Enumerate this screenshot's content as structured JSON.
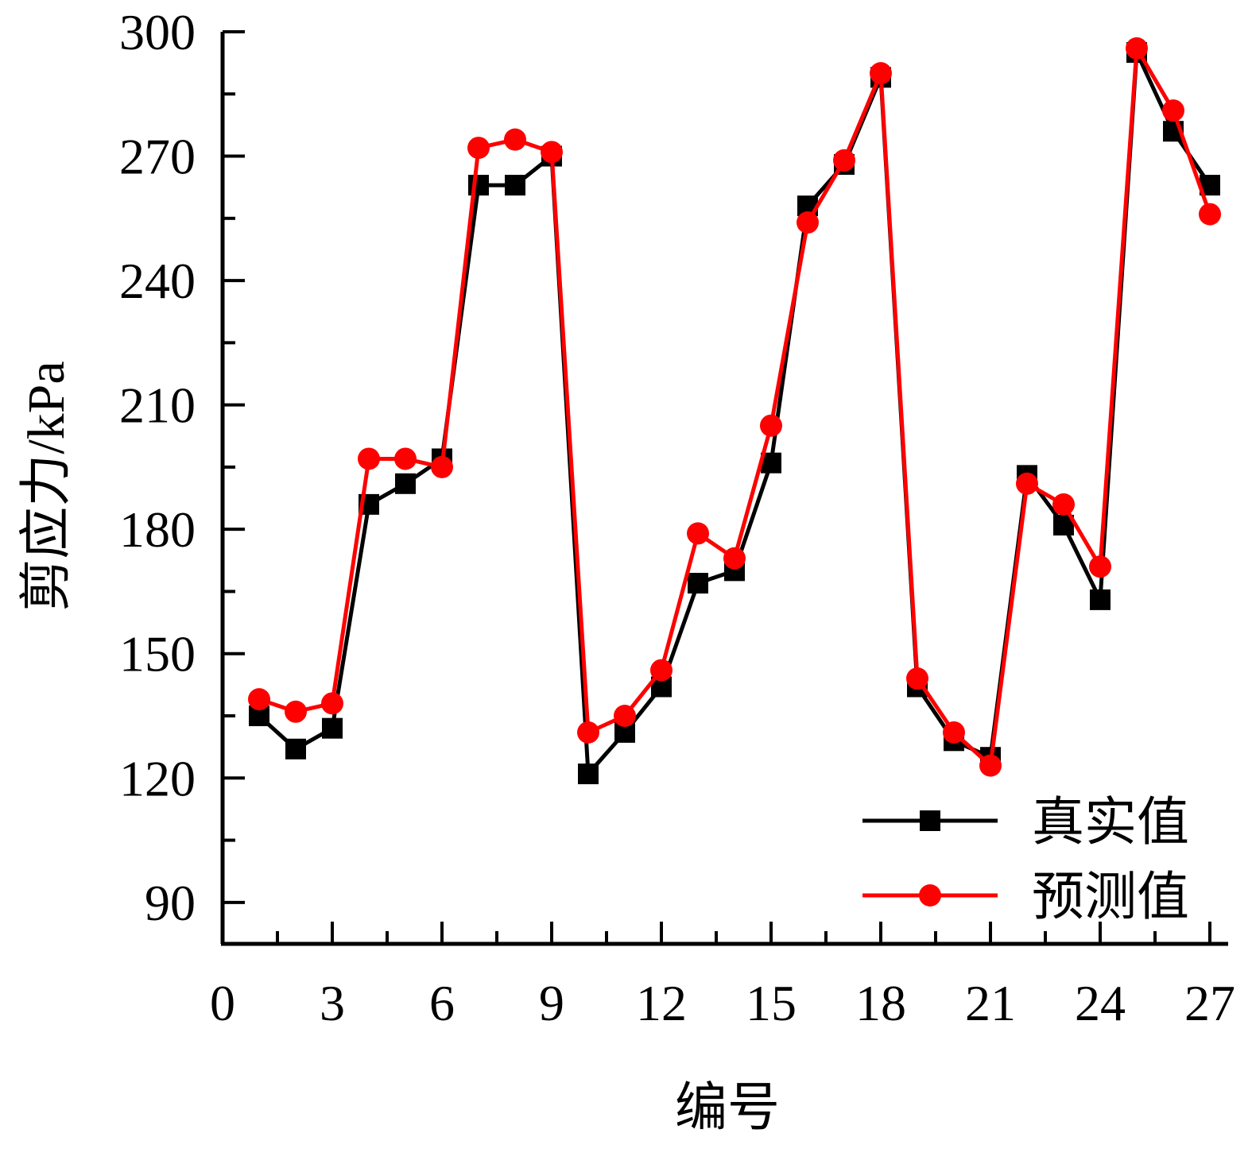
{
  "chart_data": {
    "type": "line",
    "title": "",
    "xlabel": "编号",
    "ylabel": "剪应力/kPa",
    "xlim": [
      0,
      27.5
    ],
    "ylim": [
      80,
      300
    ],
    "xticks": [
      0,
      3,
      6,
      9,
      12,
      15,
      18,
      21,
      24,
      27
    ],
    "yticks": [
      90,
      120,
      150,
      180,
      210,
      240,
      270,
      300
    ],
    "x": [
      1,
      2,
      3,
      4,
      5,
      6,
      7,
      8,
      9,
      10,
      11,
      12,
      13,
      14,
      15,
      16,
      17,
      18,
      19,
      20,
      21,
      22,
      23,
      24,
      25,
      26,
      27
    ],
    "series": [
      {
        "name": "真实值",
        "color": "#000000",
        "marker": "square",
        "values": [
          135,
          127,
          132,
          186,
          191,
          197,
          263,
          263,
          270,
          121,
          131,
          142,
          167,
          170,
          196,
          258,
          268,
          289,
          142,
          129,
          125,
          193,
          181,
          163,
          295,
          276,
          263
        ]
      },
      {
        "name": "预测值",
        "color": "#ff0000",
        "marker": "circle",
        "values": [
          139,
          136,
          138,
          197,
          197,
          195,
          272,
          274,
          271,
          131,
          135,
          146,
          179,
          173,
          205,
          254,
          269,
          290,
          144,
          131,
          123,
          191,
          186,
          171,
          296,
          281,
          256
        ]
      }
    ],
    "legend": {
      "position": "bottom-right"
    },
    "grid": false
  }
}
